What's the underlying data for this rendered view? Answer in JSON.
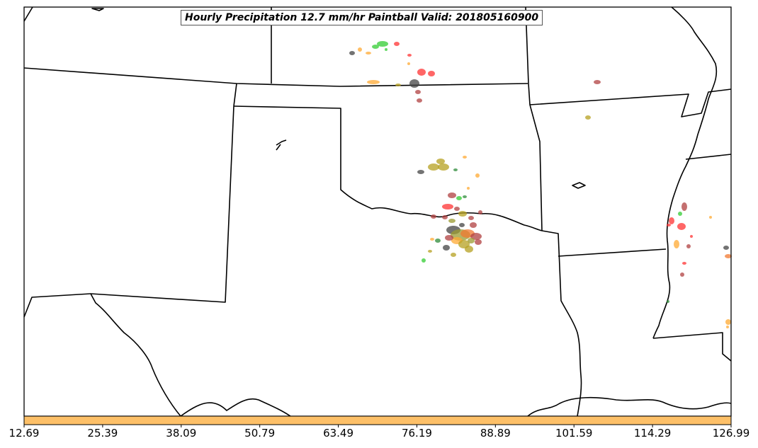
{
  "map": {
    "title": "Hourly Precipitation 12.7 mm/hr Paintball Valid: 201805160900",
    "colorbar": {
      "color": "#fdc068",
      "tick_labels": [
        "12.69",
        "25.39",
        "38.09",
        "50.79",
        "63.49",
        "76.19",
        "88.89",
        "101.59",
        "114.29",
        "126.99"
      ]
    },
    "member_colors": [
      "#ff3333",
      "#33cc33",
      "#ffaa33",
      "#b5a020",
      "#b04040",
      "#444444",
      "#2e8b3a",
      "#9b9b30",
      "#f07830"
    ]
  }
}
